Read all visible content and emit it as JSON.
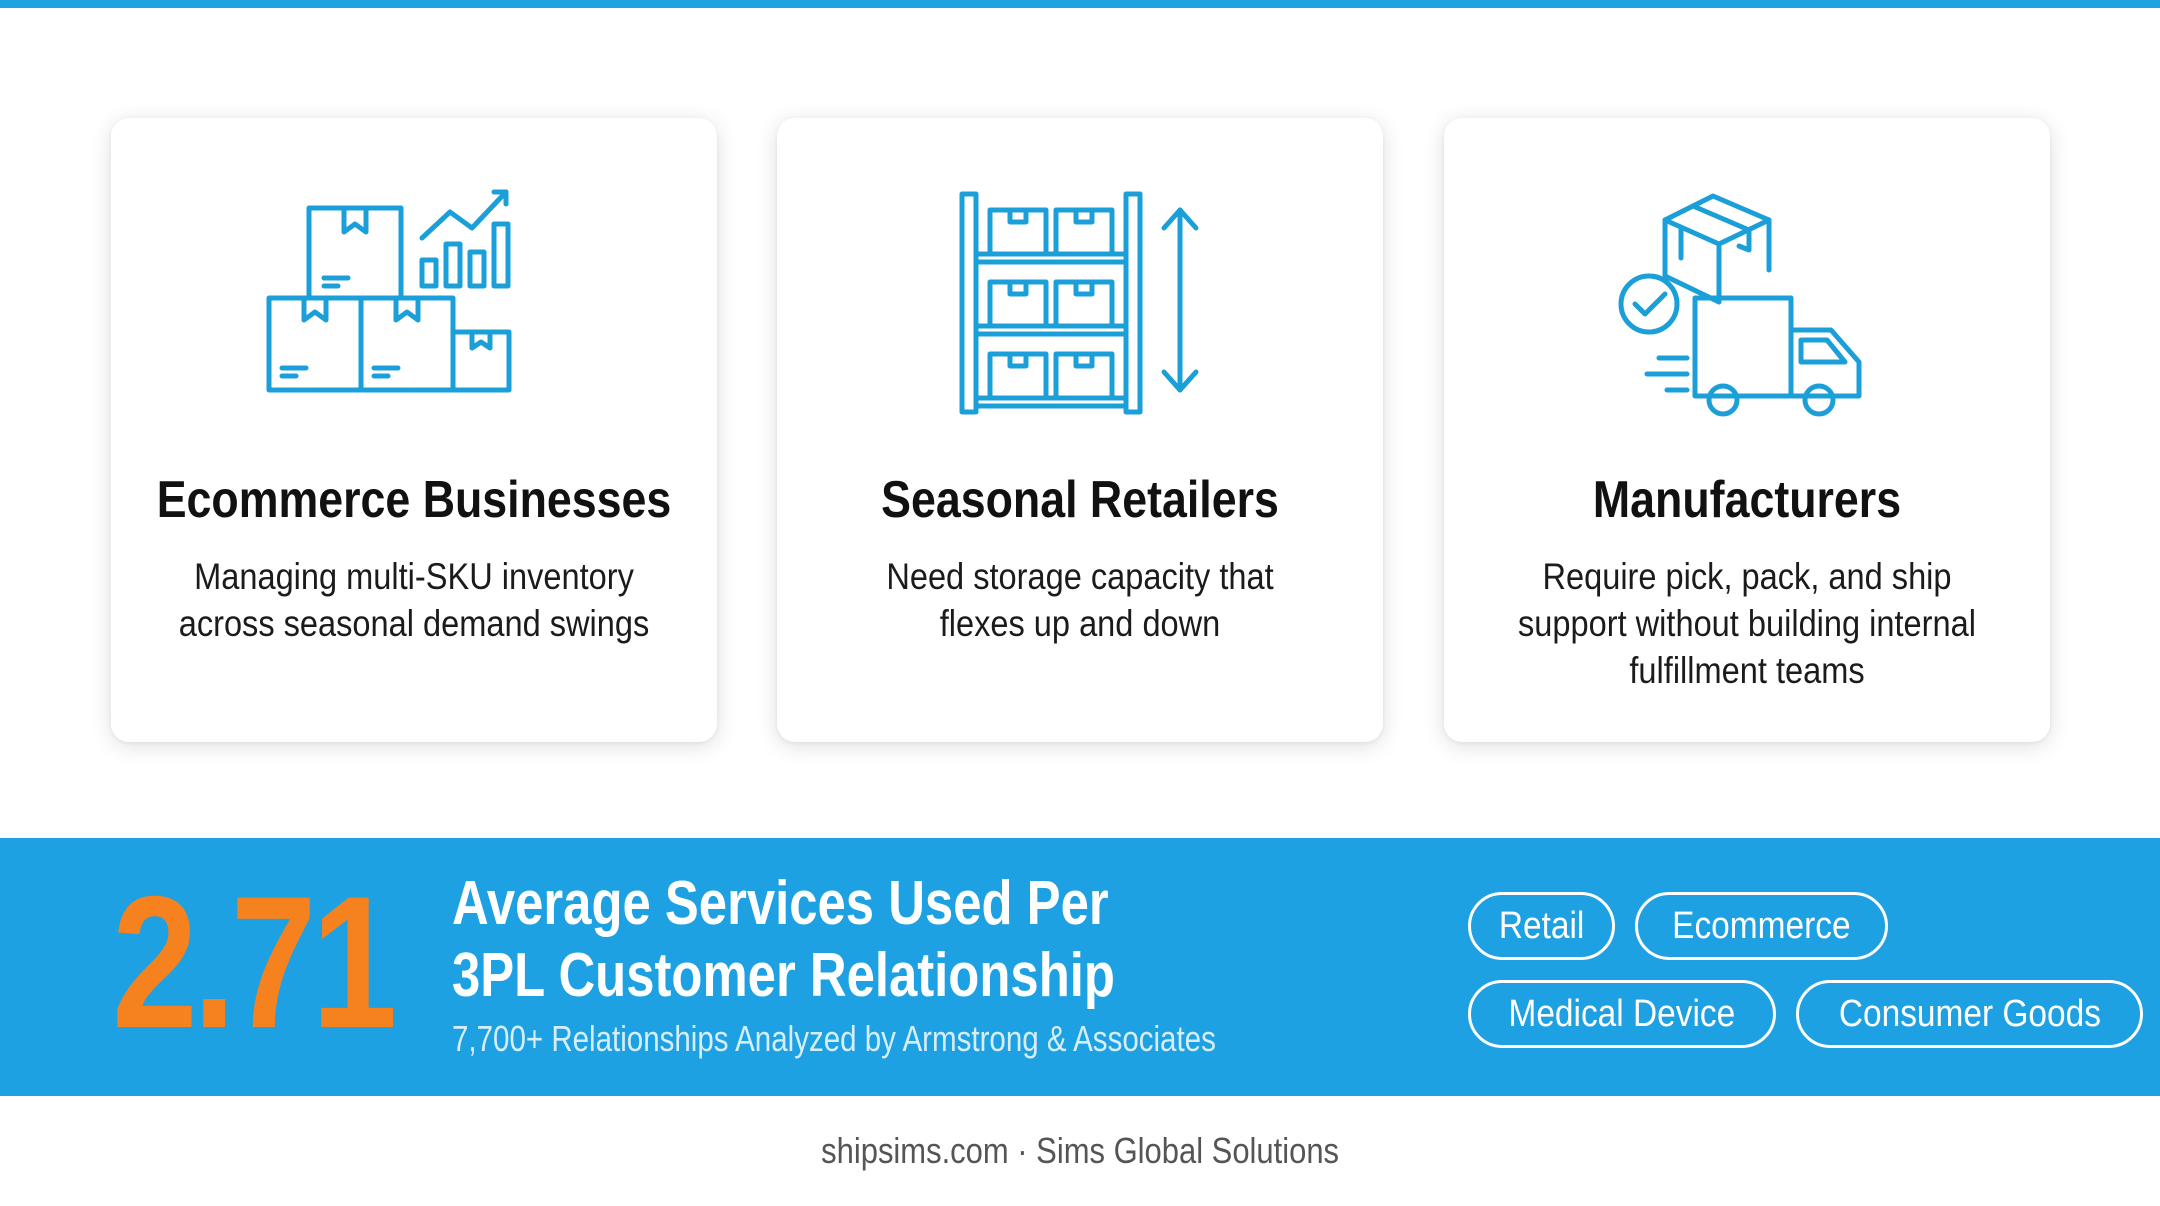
{
  "cards": [
    {
      "icon": "inventory-boxes-chart-icon",
      "title": "Ecommerce Businesses",
      "description": "Managing multi-SKU inventory across seasonal demand swings"
    },
    {
      "icon": "warehouse-shelving-icon",
      "title": "Seasonal Retailers",
      "description": "Need storage capacity that flexes up and down"
    },
    {
      "icon": "delivery-truck-package-icon",
      "title": "Manufacturers",
      "description": "Require pick, pack, and ship support without building internal fulfillment teams"
    }
  ],
  "stat": {
    "value": "2.71",
    "headline_line1": "Average Services Used Per",
    "headline_line2": "3PL Customer Relationship",
    "subline": "7,700+ Relationships Analyzed by Armstrong & Associates"
  },
  "tags": [
    "Retail",
    "Ecommerce",
    "Medical Device",
    "Consumer Goods"
  ],
  "footer": "shipsims.com · Sims Global Solutions",
  "colors": {
    "accent_blue": "#1da1e2",
    "icon_blue": "#1b9fd8",
    "stat_orange": "#f5821f"
  }
}
